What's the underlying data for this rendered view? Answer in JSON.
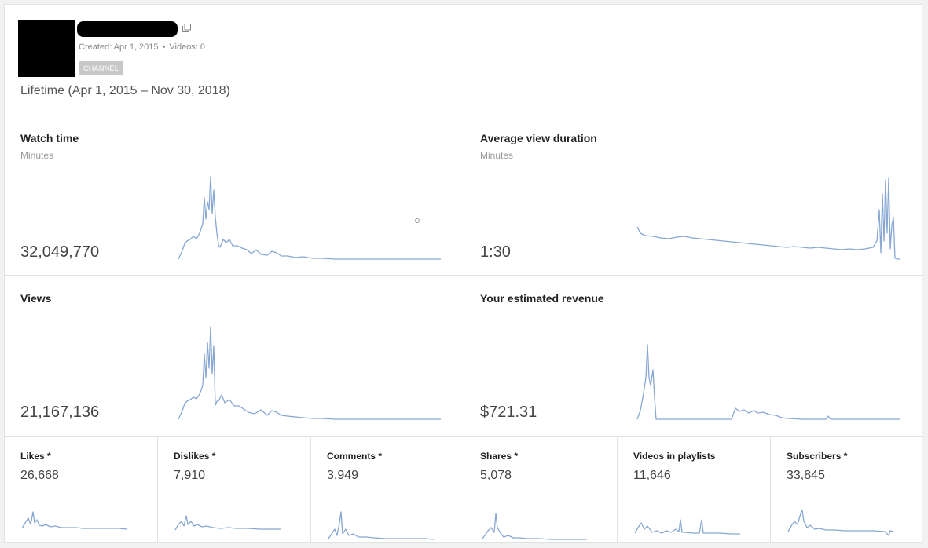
{
  "header": {
    "created": "Created: Apr 1, 2015",
    "videos": "Videos: 0",
    "badge": "CHANNEL",
    "range": "Lifetime (Apr 1, 2015 – Nov 30, 2018)"
  },
  "metrics": {
    "watch_time": {
      "title": "Watch time",
      "unit": "Minutes",
      "value": "32,049,770"
    },
    "avg_view_duration": {
      "title": "Average view duration",
      "unit": "Minutes",
      "value": "1:30"
    },
    "views": {
      "title": "Views",
      "value": "21,167,136"
    },
    "revenue": {
      "title": "Your estimated revenue",
      "value": "$721.31"
    }
  },
  "small_metrics": [
    {
      "title": "Likes *",
      "value": "26,668"
    },
    {
      "title": "Dislikes *",
      "value": "7,910"
    },
    {
      "title": "Comments *",
      "value": "3,949"
    },
    {
      "title": "Shares *",
      "value": "5,078"
    },
    {
      "title": "Videos in playlists",
      "value": "11,646"
    },
    {
      "title": "Subscribers *",
      "value": "33,845"
    }
  ],
  "colors": {
    "spark": "#87a7d3",
    "border": "#e2e2e2"
  }
}
